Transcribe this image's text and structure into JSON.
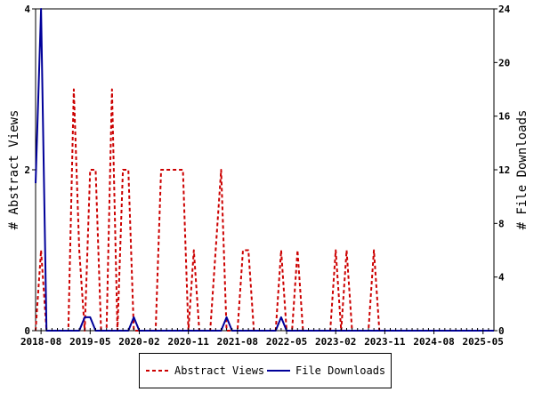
{
  "chart_data": {
    "type": "line",
    "ylabel": "# Abstract Views",
    "y2label": "# File Downloads",
    "ylim": [
      0,
      4
    ],
    "y2lim": [
      0,
      24
    ],
    "yticks": [
      "0",
      "2",
      "4"
    ],
    "y2ticks": [
      "0",
      "4",
      "8",
      "12",
      "16",
      "20",
      "24"
    ],
    "xticks": [
      "2018-08",
      "2019-05",
      "2020-02",
      "2020-11",
      "2021-08",
      "2022-05",
      "2023-02",
      "2023-11",
      "2024-08",
      "2025-05"
    ],
    "xlim": [
      "2018-07",
      "2025-07"
    ],
    "legend_position": "bottom-center",
    "grid": false,
    "series": [
      {
        "name": "Abstract Views",
        "axis": "left",
        "color": "#cc0000",
        "style": "dashed",
        "points": [
          [
            "2018-07",
            0
          ],
          [
            "2018-08",
            1
          ],
          [
            "2018-09",
            0
          ],
          [
            "2019-01",
            0
          ],
          [
            "2019-02",
            3
          ],
          [
            "2019-03",
            1
          ],
          [
            "2019-04",
            0
          ],
          [
            "2019-05",
            2
          ],
          [
            "2019-06",
            2
          ],
          [
            "2019-07",
            0
          ],
          [
            "2019-08",
            0
          ],
          [
            "2019-09",
            3
          ],
          [
            "2019-10",
            0
          ],
          [
            "2019-11",
            2
          ],
          [
            "2019-12",
            2
          ],
          [
            "2020-01",
            0
          ],
          [
            "2020-05",
            0
          ],
          [
            "2020-06",
            2
          ],
          [
            "2020-07",
            2
          ],
          [
            "2020-08",
            2
          ],
          [
            "2020-09",
            2
          ],
          [
            "2020-10",
            2
          ],
          [
            "2020-11",
            0
          ],
          [
            "2020-12",
            1
          ],
          [
            "2021-01",
            0
          ],
          [
            "2021-03",
            0
          ],
          [
            "2021-04",
            1
          ],
          [
            "2021-05",
            2
          ],
          [
            "2021-06",
            0
          ],
          [
            "2021-08",
            0
          ],
          [
            "2021-09",
            1
          ],
          [
            "2021-10",
            1
          ],
          [
            "2021-11",
            0
          ],
          [
            "2022-03",
            0
          ],
          [
            "2022-04",
            1
          ],
          [
            "2022-05",
            0
          ],
          [
            "2022-06",
            0
          ],
          [
            "2022-07",
            1
          ],
          [
            "2022-08",
            0
          ],
          [
            "2023-01",
            0
          ],
          [
            "2023-02",
            1
          ],
          [
            "2023-03",
            0
          ],
          [
            "2023-04",
            1
          ],
          [
            "2023-05",
            0
          ],
          [
            "2023-08",
            0
          ],
          [
            "2023-09",
            1
          ],
          [
            "2023-10",
            0
          ],
          [
            "2025-07",
            0
          ]
        ]
      },
      {
        "name": "File Downloads",
        "axis": "right",
        "color": "#000099",
        "style": "solid",
        "points": [
          [
            "2018-07",
            11
          ],
          [
            "2018-08",
            24
          ],
          [
            "2018-09",
            0
          ],
          [
            "2019-03",
            0
          ],
          [
            "2019-04",
            1
          ],
          [
            "2019-05",
            1
          ],
          [
            "2019-06",
            0
          ],
          [
            "2019-12",
            0
          ],
          [
            "2020-01",
            1
          ],
          [
            "2020-02",
            0
          ],
          [
            "2021-05",
            0
          ],
          [
            "2021-06",
            1
          ],
          [
            "2021-07",
            0
          ],
          [
            "2022-03",
            0
          ],
          [
            "2022-04",
            1
          ],
          [
            "2022-05",
            0
          ],
          [
            "2025-07",
            0
          ]
        ]
      }
    ]
  }
}
